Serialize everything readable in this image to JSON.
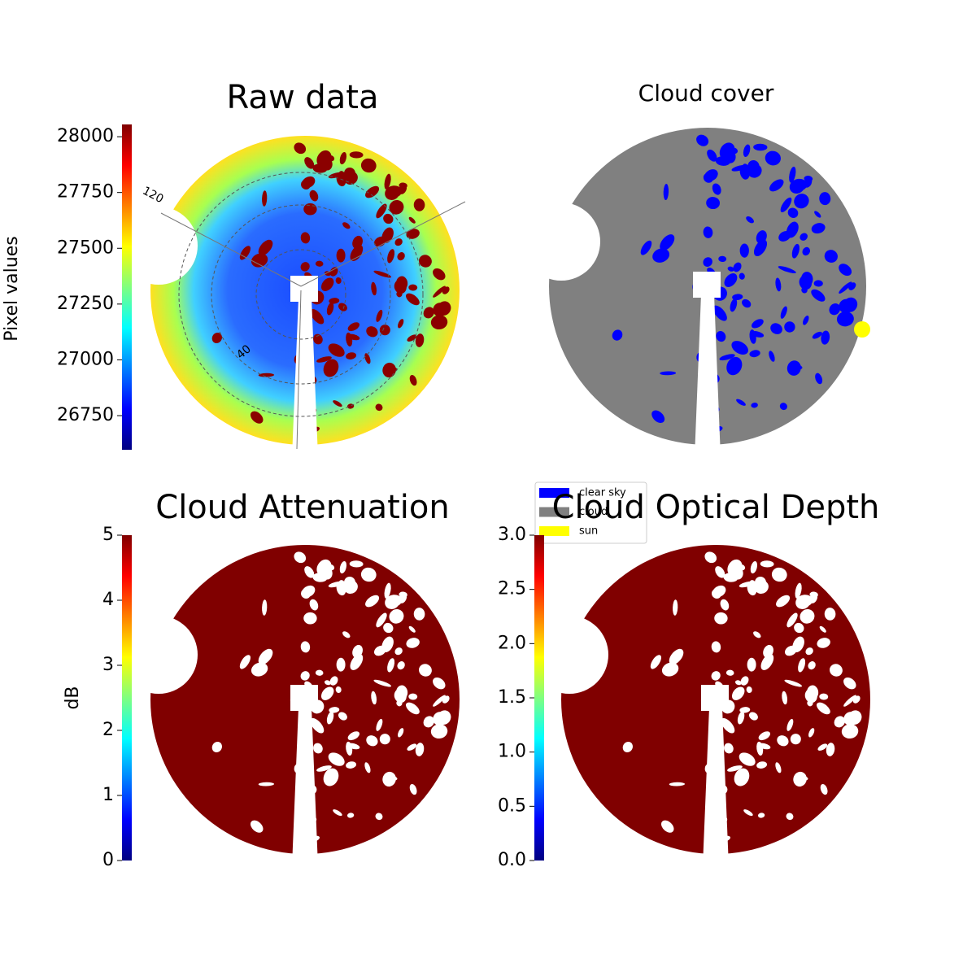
{
  "chart_data": [
    {
      "type": "image",
      "title": "Raw data",
      "colorbar_label": "Pixel values",
      "colormap": "jet",
      "ylim": [
        26597,
        28055
      ],
      "yticks": [
        26750,
        27000,
        27250,
        27500,
        27750,
        28000
      ],
      "annotations": [
        "120",
        "40"
      ]
    },
    {
      "type": "classification",
      "title": "Cloud cover",
      "series": [
        {
          "name": "clear sky",
          "color": "#0000ff"
        },
        {
          "name": "cloud",
          "color": "#808080"
        },
        {
          "name": "sun",
          "color": "#ffff00"
        }
      ]
    },
    {
      "type": "image",
      "title": "Cloud Attenuation",
      "colorbar_label": "dB",
      "colormap": "jet",
      "ylim": [
        0,
        5
      ],
      "yticks": [
        0,
        1,
        2,
        3,
        4,
        5
      ]
    },
    {
      "type": "image",
      "title": "Cloud Optical Depth",
      "colormap": "jet",
      "ylim": [
        0,
        3
      ],
      "yticks": [
        {
          "value": 0,
          "label": "0.0"
        },
        {
          "value": 0.5,
          "label": "0.5"
        },
        {
          "value": 1,
          "label": "1.0"
        },
        {
          "value": 1.5,
          "label": "1.5"
        },
        {
          "value": 2,
          "label": "2.0"
        },
        {
          "value": 2.5,
          "label": "2.5"
        },
        {
          "value": 3,
          "label": "3.0"
        }
      ]
    }
  ]
}
